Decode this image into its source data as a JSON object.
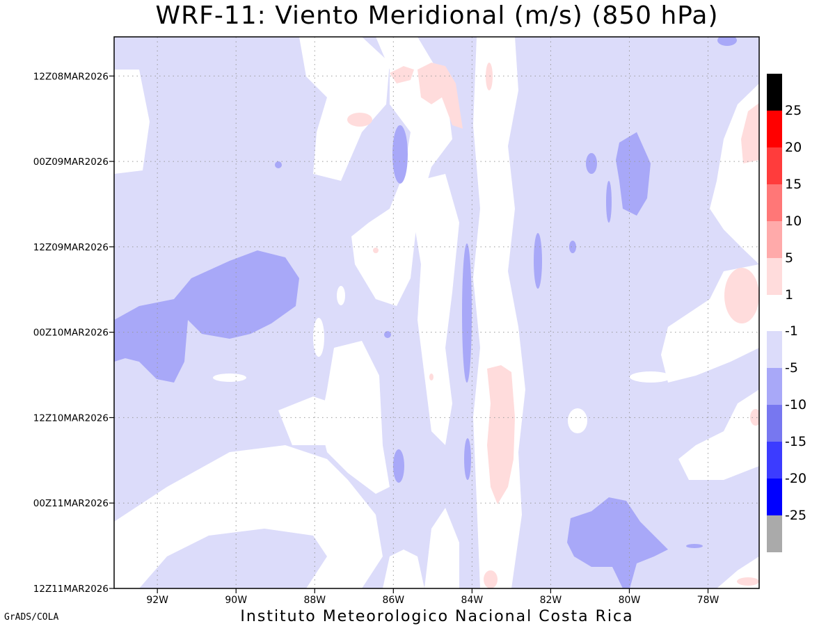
{
  "title": "WRF-11: Viento Meridional (m/s) (850 hPa)",
  "footer": {
    "left": "GrADS/COLA",
    "center": "Instituto Meteorologico Nacional Costa Rica"
  },
  "colors": {
    "neg_1_5": "#dcdcfa",
    "neg_5_10": "#a8a8f8",
    "neg_10_15": "#7777f0",
    "neg_15_20": "#3c3cff",
    "neg_20_25": "#0000ff",
    "neg_below_25": "#aaaaaa",
    "pos_1_5": "#ffdcdc",
    "pos_5_10": "#ffaaaa",
    "pos_10_15": "#ff7777",
    "pos_15_20": "#ff3c3c",
    "pos_20_25": "#ff0000",
    "pos_above_25": "#000000"
  },
  "chart_data": {
    "type": "heatmap",
    "title": "WRF-11: Viento Meridional (m/s) (850 hPa)",
    "variable": "Viento Meridional",
    "units": "m/s",
    "level": "850 hPa",
    "xlabel": "",
    "ylabel": "",
    "x_ticks": [
      "92W",
      "90W",
      "88W",
      "86W",
      "84W",
      "82W",
      "80W",
      "78W"
    ],
    "x_tick_values": [
      -92,
      -90,
      -88,
      -86,
      -84,
      -82,
      -80,
      -78
    ],
    "xlim": [
      -93.1,
      -76.7
    ],
    "y_ticks": [
      "12Z08MAR2026",
      "00Z09MAR2026",
      "12Z09MAR2026",
      "00Z10MAR2026",
      "12Z10MAR2026",
      "00Z11MAR2026",
      "12Z11MAR2026"
    ],
    "y_tick_values": [
      0,
      12,
      24,
      36,
      48,
      60,
      72
    ],
    "ylim": [
      -5.5,
      72
    ],
    "y_time_axis": "hours from 12Z08MAR2026, increasing downward",
    "grid": true,
    "colorbar": {
      "position": "right",
      "labels": [
        "25",
        "20",
        "15",
        "10",
        "5",
        "1",
        "-1",
        "-5",
        "-10",
        "-15",
        "-20",
        "-25"
      ]
    },
    "features": [
      {
        "sign": "negative",
        "class": "-5 to -10",
        "label": "large band 92W-89W",
        "lon": [
          -93.1,
          -88.7
        ],
        "time": [
          25,
          43
        ]
      },
      {
        "sign": "negative",
        "class": "-5 to -10",
        "label": "cell near 80W",
        "lon": [
          -80.7,
          -79.2
        ],
        "time": [
          8,
          20
        ]
      },
      {
        "sign": "negative",
        "class": "-5 to -10",
        "label": "cell near 81W late",
        "lon": [
          -81.5,
          -79.0
        ],
        "time": [
          58,
          72
        ]
      },
      {
        "sign": "positive",
        "class": "1 to 5",
        "label": "band near 83.5W",
        "lon": [
          -84.0,
          -83.0
        ],
        "time": [
          41,
          60
        ]
      },
      {
        "sign": "positive",
        "class": "1 to 5",
        "label": "patch near 77.5W",
        "lon": [
          -77.5,
          -76.7
        ],
        "time": [
          27,
          35
        ]
      }
    ]
  }
}
